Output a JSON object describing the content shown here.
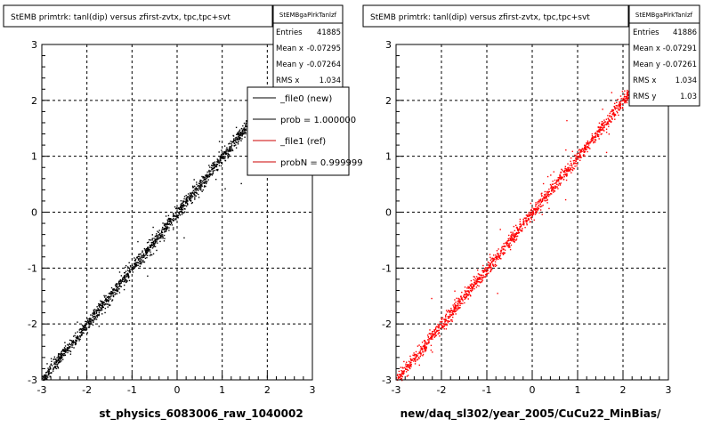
{
  "panels": [
    {
      "title": "StEMB primtrk: tanl(dip) versus zfirst-zvtx, tpc,tpc+svt",
      "stats": {
        "name": "StEMBgaPlrkTanlzf",
        "rows": [
          {
            "label": "Entries",
            "value": "41885"
          },
          {
            "label": "Mean x",
            "value": "-0.07295"
          },
          {
            "label": "Mean y",
            "value": "-0.07264"
          },
          {
            "label": "RMS x",
            "value": "1.034"
          }
        ]
      },
      "legend": [
        {
          "label": "_file0 (new)",
          "color": "#000000"
        },
        {
          "label": "prob = 1.000000",
          "color": "#000000"
        },
        {
          "label": "_file1 (ref)",
          "color": "#cc0000"
        },
        {
          "label": "probN = 0.999999",
          "color": "#cc0000"
        }
      ],
      "xlabel": "st_physics_6083006_raw_1040002",
      "color": "#000000"
    },
    {
      "title": "StEMB primtrk: tanl(dip) versus zfirst-zvtx, tpc,tpc+svt",
      "stats": {
        "name": "StEMBgaPlrkTanlzf",
        "rows": [
          {
            "label": "Entries",
            "value": "41886"
          },
          {
            "label": "Mean x",
            "value": "-0.07291"
          },
          {
            "label": "Mean y",
            "value": "-0.07261"
          },
          {
            "label": "RMS x",
            "value": "1.034"
          },
          {
            "label": "RMS y",
            "value": "1.03"
          }
        ]
      },
      "xlabel": "new/daq_sl302/year_2005/CuCu22_MinBias/",
      "color": "#ff0000"
    }
  ],
  "chart_data": [
    {
      "type": "heatmap",
      "title": "StEMB primtrk: tanl(dip) versus zfirst-zvtx, tpc,tpc+svt",
      "xlabel": "st_physics_6083006_raw_1040002",
      "ylabel": "",
      "xlim": [
        -3,
        3
      ],
      "ylim": [
        -3,
        3
      ],
      "x_ticks": [
        "-3",
        "-2",
        "-1",
        "0",
        "1",
        "2",
        "3"
      ],
      "y_ticks": [
        "-3",
        "-2",
        "-1",
        "0",
        "1",
        "2",
        "3"
      ],
      "grid": true,
      "correlation": {
        "slope": 1.0,
        "intercept": 0.0,
        "x_range": [
          -3,
          1.6
        ]
      },
      "entries": 41885,
      "mean_x": -0.07295,
      "mean_y": -0.07264,
      "rms_x": 1.034,
      "marker_color": "#000000"
    },
    {
      "type": "heatmap",
      "title": "StEMB primtrk: tanl(dip) versus zfirst-zvtx, tpc,tpc+svt",
      "xlabel": "new/daq_sl302/year_2005/CuCu22_MinBias/",
      "ylabel": "",
      "xlim": [
        -3,
        3
      ],
      "ylim": [
        -3,
        3
      ],
      "x_ticks": [
        "-3",
        "-2",
        "-1",
        "0",
        "1",
        "2",
        "3"
      ],
      "y_ticks": [
        "-3",
        "-2",
        "-1",
        "0",
        "1",
        "2",
        "3"
      ],
      "grid": true,
      "correlation": {
        "slope": 1.0,
        "intercept": 0.0,
        "x_range": [
          -3,
          2.2
        ]
      },
      "entries": 41886,
      "mean_x": -0.07291,
      "mean_y": -0.07261,
      "rms_x": 1.034,
      "rms_y": 1.03,
      "marker_color": "#ff0000"
    }
  ]
}
